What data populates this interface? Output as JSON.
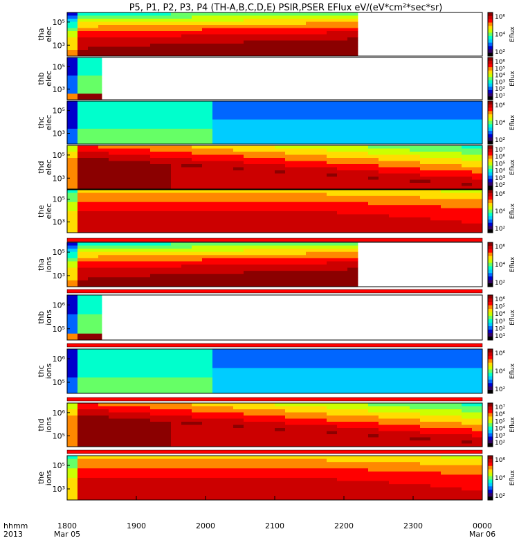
{
  "title": "P5, P1, P2, P3, P4 (TH-A,B,C,D,E) PSIR,PSER EFlux eV/(eV*cm²*sec*sr)",
  "time_axis": {
    "row_label_1": "hhmm",
    "row_label_2": "2013",
    "ticks": [
      {
        "t": 0,
        "label": "1800",
        "date": "Mar 05"
      },
      {
        "t": 1,
        "label": "1900",
        "date": ""
      },
      {
        "t": 2,
        "label": "2000",
        "date": ""
      },
      {
        "t": 3,
        "label": "2100",
        "date": ""
      },
      {
        "t": 4,
        "label": "2200",
        "date": ""
      },
      {
        "t": 5,
        "label": "2300",
        "date": ""
      },
      {
        "t": 6,
        "label": "0000",
        "date": "Mar 06"
      }
    ],
    "range_hours": [
      0,
      6
    ]
  },
  "colorbar_label": "Eflux",
  "colors": {
    "colormap": [
      "#8b0000",
      "#cc0000",
      "#ff0000",
      "#ff8800",
      "#ffdd00",
      "#ccff00",
      "#66ff66",
      "#00ffcc",
      "#00ccff",
      "#0066ff",
      "#0000cc",
      "#330066",
      "#000000"
    ]
  },
  "chart_data": {
    "type": "heatmap",
    "x_unit": "hours after 1800 UT, 2013 Mar 05",
    "panels": [
      {
        "probe": "tha",
        "species": "elec",
        "ytick_labels": [
          "10⁵",
          "10³"
        ],
        "cbar_ticks": [
          "10⁶",
          "10⁴",
          "10²"
        ],
        "data_end_hours": 4.2,
        "profile": "a"
      },
      {
        "probe": "thb",
        "species": "elec",
        "ytick_labels": [
          "10⁵",
          "10³"
        ],
        "cbar_ticks": [
          "10⁶",
          "10⁵",
          "10⁴",
          "10³",
          "10²",
          "10¹"
        ],
        "data_end_hours": 0.5,
        "profile": "b"
      },
      {
        "probe": "thc",
        "species": "elec",
        "ytick_labels": [
          "10⁵",
          "10³"
        ],
        "cbar_ticks": [
          "10⁶",
          "10⁴",
          "10²"
        ],
        "data_end_hours": 6.0,
        "profile": "c"
      },
      {
        "probe": "thd",
        "species": "elec",
        "ytick_labels": [
          "10⁵",
          "10³"
        ],
        "cbar_ticks": [
          "10⁷",
          "10⁶",
          "10⁵",
          "10⁴",
          "10³",
          "10²"
        ],
        "data_end_hours": 6.0,
        "profile": "d"
      },
      {
        "probe": "the",
        "species": "elec",
        "ytick_labels": [
          "10⁵",
          "10³"
        ],
        "cbar_ticks": [
          "10⁶",
          "10⁴",
          "10²"
        ],
        "data_end_hours": 6.0,
        "profile": "e"
      },
      {
        "probe": "tha",
        "species": "ions",
        "ytick_labels": [
          "10⁵",
          "10³"
        ],
        "cbar_ticks": [
          "10⁶",
          "10⁴",
          "10²"
        ],
        "data_end_hours": 4.2,
        "profile": "a"
      },
      {
        "probe": "thb",
        "species": "ions",
        "ytick_labels": [
          "10⁶",
          "10⁵"
        ],
        "cbar_ticks": [
          "10⁶",
          "10⁵",
          "10⁴",
          "10³",
          "10²",
          "10¹"
        ],
        "data_end_hours": 0.5,
        "profile": "b"
      },
      {
        "probe": "thc",
        "species": "ions",
        "ytick_labels": [
          "10⁶",
          "10⁵"
        ],
        "cbar_ticks": [
          "10⁶",
          "10⁴",
          "10²"
        ],
        "data_end_hours": 6.0,
        "profile": "c"
      },
      {
        "probe": "thd",
        "species": "ions",
        "ytick_labels": [
          "10⁶",
          "10⁵"
        ],
        "cbar_ticks": [
          "10⁷",
          "10⁶",
          "10⁵",
          "10⁴",
          "10³",
          "10²"
        ],
        "data_end_hours": 6.0,
        "profile": "d"
      },
      {
        "probe": "the",
        "species": "ions",
        "ytick_labels": [
          "10⁵",
          "10³"
        ],
        "cbar_ticks": [
          "10⁶",
          "10⁴",
          "10²"
        ],
        "data_end_hours": 6.0,
        "profile": "e"
      }
    ]
  }
}
